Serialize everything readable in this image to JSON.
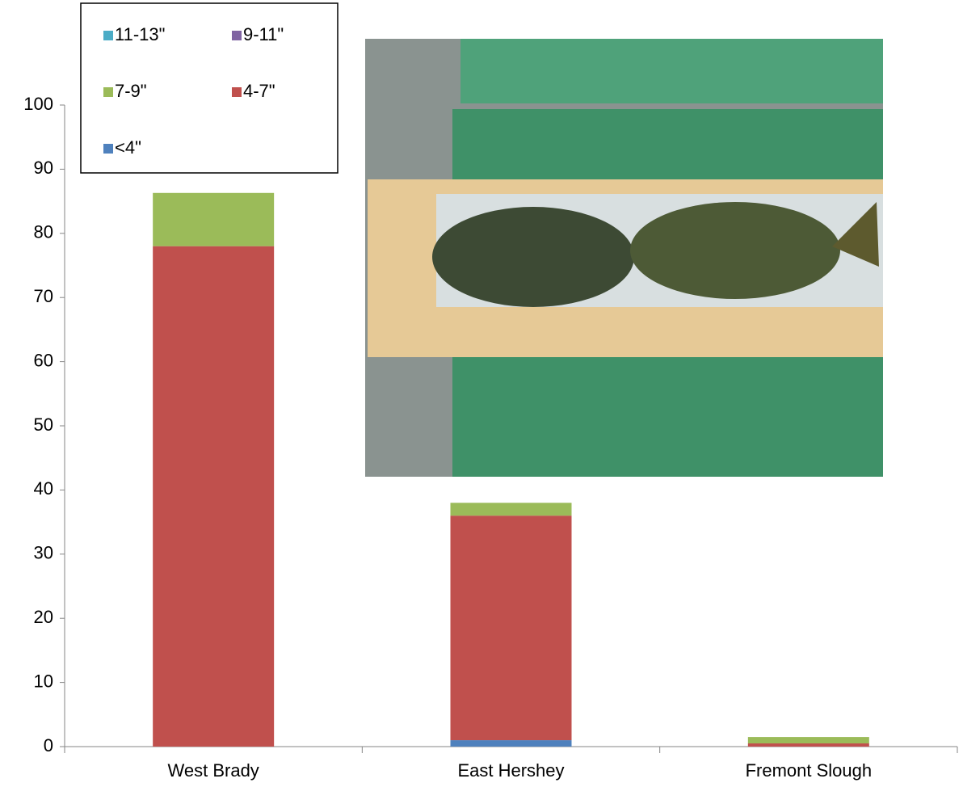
{
  "chart_data": {
    "type": "stacked_bar",
    "categories": [
      "West Brady",
      "East Hershey",
      "Fremont Slough"
    ],
    "series": [
      {
        "name": "<4\"",
        "color": "#4f81bd",
        "values": [
          0,
          1,
          0
        ]
      },
      {
        "name": "4-7\"",
        "color": "#c0504d",
        "values": [
          78,
          35,
          0.5
        ]
      },
      {
        "name": "7-9\"",
        "color": "#9bbb59",
        "values": [
          8.3,
          2,
          1
        ]
      },
      {
        "name": "9-11\"",
        "color": "#8064a2",
        "values": [
          0,
          0,
          0
        ]
      },
      {
        "name": "11-13\"",
        "color": "#4bacc6",
        "values": [
          0,
          0,
          0
        ]
      }
    ],
    "ylim": [
      0,
      100
    ],
    "yticks": [
      0,
      10,
      20,
      30,
      40,
      50,
      60,
      70,
      80,
      90,
      100
    ],
    "legend": "top-left"
  }
}
